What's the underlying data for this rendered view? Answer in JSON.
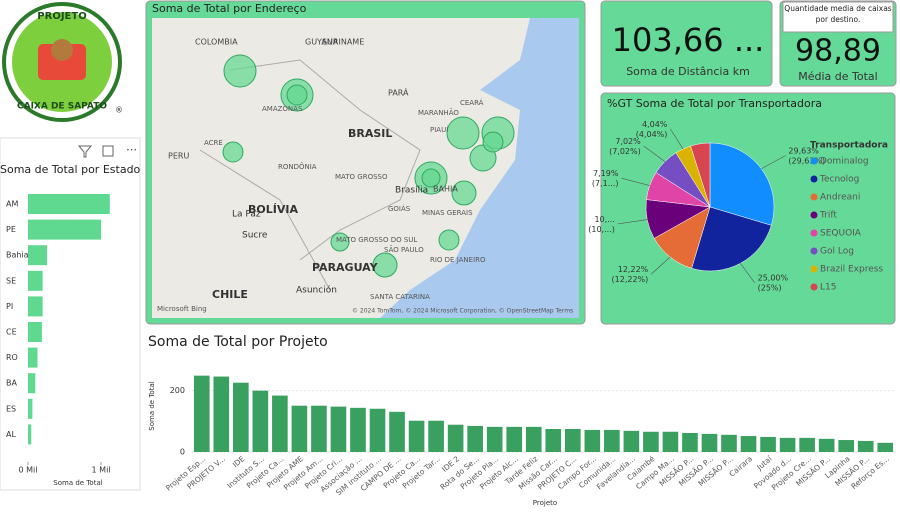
{
  "logo": {
    "top": "PROJETO",
    "bottom": "CAIXA DE SAPATO",
    "mark": "®"
  },
  "cards": [
    {
      "value": "103,66 ...",
      "label": "Soma de Distância km"
    },
    {
      "tooltip": "Quantidade media de caixas por destino.",
      "value": "98,89",
      "label": "Média de Total"
    }
  ],
  "map": {
    "title": "Soma de Total por Endereço",
    "labels": [
      "COLOMBIA",
      "GUYANA",
      "SURINAME",
      "AMAZONAS",
      "PARÁ",
      "MARANHÃO",
      "CEARÁ",
      "PERU",
      "ACRE",
      "RONDÔNIA",
      "BRASIL",
      "PIAUÍ",
      "MATO GROSSO",
      "BAHIA",
      "Brasília",
      "GOIÁS",
      "MINAS GERAIS",
      "BOLÍVIA",
      "La Paz",
      "Sucre",
      "MATO GROSSO DO SUL",
      "SÃO PAULO",
      "RIO DE JANEIRO",
      "PARAGUAY",
      "CHILE",
      "Asunción",
      "SANTA CATARINA"
    ],
    "brand": "Microsoft Bing",
    "credits": "© 2024 TomTom, © 2024 Microsoft Corporation, © OpenStreetMap Terms"
  },
  "chart_data": [
    {
      "type": "hbar",
      "title": "Soma de Total por Estado",
      "x_label": "Soma de Total",
      "categories": [
        "AM",
        "PE",
        "Bahia",
        "SE",
        "PI",
        "CE",
        "RO",
        "BA",
        "ES",
        "AL"
      ],
      "values": [
        1120,
        1000,
        260,
        200,
        200,
        190,
        130,
        100,
        60,
        45
      ],
      "color": "#5fd98f",
      "xlim": [
        0,
        1150
      ],
      "xticks": [
        {
          "value": 0,
          "label": "0 Mil"
        },
        {
          "value": 1000,
          "label": "1 Mil"
        }
      ]
    },
    {
      "type": "pie",
      "title": "%GT Soma de Total por Transportadora",
      "legend_title": "Transportadora",
      "categories": [
        "Dominalog",
        "Tecnolog",
        "Andreani",
        "Trift",
        "SEQUOIA",
        "Gol Log",
        "Brazil Express",
        "L15"
      ],
      "values": [
        29.63,
        25.0,
        12.22,
        10,
        7.19,
        7.02,
        4.04,
        4.9
      ],
      "value_labels": [
        "29,63% (29,63%)",
        "25,00% (25%)",
        "12,22% (12,22%)",
        "10,... (10,...)",
        "7,19% (7,1...)",
        "7,02% (7,02%)",
        "4,04% (4,04%)",
        null
      ],
      "colors": [
        "#118dff",
        "#12239e",
        "#e66c37",
        "#6b007b",
        "#e044a7",
        "#744ec2",
        "#d9b300",
        "#d64550"
      ]
    },
    {
      "type": "bar",
      "title": "Soma de Total por Projeto",
      "x_label": "Projeto",
      "y_label": "Soma de Total",
      "categories": [
        "Projeto Esp...",
        "PROJETO V...",
        "IDE",
        "Instituto S...",
        "Projeto Ca...",
        "Projeto AME",
        "Projeto Am...",
        "Projeto Cri...",
        "Associação ...",
        "SIM instituto ...",
        "CAMPO DE ...",
        "Projeto Ca...",
        "Projeto Tar...",
        "IDE 2",
        "Rota do Se...",
        "Projeto Pla...",
        "Projeto Alc...",
        "Tarde Feliz",
        "Missão Car...",
        "PROJETO C...",
        "Campo For...",
        "Comunida...",
        "Favelandia...",
        "Caiambé",
        "Campo Ma...",
        "MISSÃO P...",
        "MISSÃO P...",
        "MISSÃO P...",
        "Cairara",
        "Jutaí",
        "Povoado d...",
        "Projeto Cre...",
        "MISSÃO P...",
        "Lapinha",
        "MISSÃO P...",
        "Reforço Es..."
      ],
      "values": [
        249,
        246,
        226,
        200,
        184,
        151,
        151,
        148,
        144,
        141,
        131,
        102,
        102,
        89,
        85,
        82,
        82,
        82,
        75,
        75,
        72,
        72,
        69,
        66,
        66,
        62,
        59,
        56,
        52,
        49,
        46,
        46,
        43,
        39,
        36,
        30
      ],
      "color": "#3aa060",
      "ylim": [
        0,
        300
      ],
      "yticks": [
        0,
        200
      ],
      "grid": true
    }
  ]
}
